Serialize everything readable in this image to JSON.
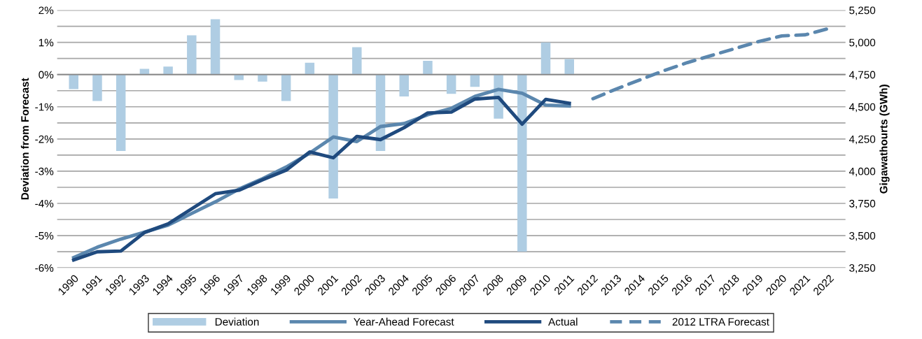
{
  "chart_data": {
    "type": "bar",
    "ylabel": "Deviation from Forecast",
    "y2label": "Gigawathourts (GWh)",
    "categories": [
      "1990",
      "1991",
      "1992",
      "1993",
      "1994",
      "1995",
      "1996",
      "1997",
      "1998",
      "1999",
      "2000",
      "2001",
      "2002",
      "2003",
      "2004",
      "2005",
      "2006",
      "2007",
      "2008",
      "2009",
      "2010",
      "2011",
      "2012",
      "2013",
      "2014",
      "2015",
      "2016",
      "2017",
      "2018",
      "2019",
      "2020",
      "2021",
      "2022"
    ],
    "series": [
      {
        "name": "Deviation",
        "color": "#afcde3",
        "values": [
          -0.45,
          -0.82,
          -2.37,
          0.18,
          0.25,
          1.22,
          1.72,
          -0.17,
          -0.22,
          -0.82,
          0.37,
          -3.85,
          0.85,
          -2.37,
          -0.68,
          0.43,
          -0.6,
          -0.38,
          -1.37,
          -5.5,
          1.0,
          0.48,
          null,
          null,
          null,
          null,
          null,
          null,
          null,
          null,
          null,
          null,
          null
        ]
      },
      {
        "name": "Year-Ahead Forecast",
        "type": "line",
        "axis": "y2",
        "color": "#5b87ae",
        "line_style": "solid",
        "values": [
          3330,
          3410,
          3473,
          3527,
          3581,
          3672,
          3762,
          3861,
          3942,
          4032,
          4140,
          4266,
          4230,
          4347,
          4370,
          4438,
          4488,
          4581,
          4635,
          4605,
          4513,
          4506,
          null,
          null,
          null,
          null,
          null,
          null,
          null,
          null,
          null,
          null,
          null
        ]
      },
      {
        "name": "Actual",
        "type": "line",
        "axis": "y2",
        "color": "#1f4a7e",
        "line_style": "solid",
        "values": [
          3311,
          3374,
          3380,
          3524,
          3591,
          3708,
          3825,
          3852,
          3933,
          4008,
          4149,
          4104,
          4270,
          4245,
          4338,
          4452,
          4459,
          4560,
          4573,
          4365,
          4558,
          4527,
          null,
          null,
          null,
          null,
          null,
          null,
          null,
          null,
          null,
          null,
          null
        ]
      },
      {
        "name": "2012 LTRA Forecast",
        "type": "line",
        "axis": "y2",
        "color": "#5b87ae",
        "line_style": "dashed",
        "values": [
          null,
          null,
          null,
          null,
          null,
          null,
          null,
          null,
          null,
          null,
          null,
          null,
          null,
          null,
          null,
          null,
          null,
          null,
          null,
          null,
          null,
          null,
          4563,
          4639,
          4710,
          4780,
          4843,
          4897,
          4951,
          5005,
          5050,
          5059,
          5108
        ]
      }
    ],
    "ylim": [
      -6,
      2
    ],
    "yticks": [
      {
        "value": -6,
        "label": "-6%"
      },
      {
        "value": -5.5,
        "label": null
      },
      {
        "value": -5,
        "label": "-5%"
      },
      {
        "value": -4.5,
        "label": null
      },
      {
        "value": -4,
        "label": "-4%"
      },
      {
        "value": -3.5,
        "label": null
      },
      {
        "value": -3,
        "label": "-3%"
      },
      {
        "value": -2.5,
        "label": null
      },
      {
        "value": -2,
        "label": "-2%"
      },
      {
        "value": -1.5,
        "label": null
      },
      {
        "value": -1,
        "label": "-1%"
      },
      {
        "value": -0.5,
        "label": null
      },
      {
        "value": 0,
        "label": "0%"
      },
      {
        "value": 0.5,
        "label": null
      },
      {
        "value": 1,
        "label": "1%"
      },
      {
        "value": 1.5,
        "label": null
      },
      {
        "value": 2,
        "label": "2%"
      }
    ],
    "y2lim": [
      3250,
      5250
    ],
    "y2ticks": [
      {
        "value": 3250,
        "label": "3,250"
      },
      {
        "value": 3500,
        "label": "3,500"
      },
      {
        "value": 3750,
        "label": "3,750"
      },
      {
        "value": 4000,
        "label": "4,000"
      },
      {
        "value": 4250,
        "label": "4,250"
      },
      {
        "value": 4500,
        "label": "4,500"
      },
      {
        "value": 4750,
        "label": "4,750"
      },
      {
        "value": 5000,
        "label": "5,000"
      },
      {
        "value": 5250,
        "label": "5,250"
      }
    ],
    "grid": "y",
    "legend": "bottom"
  }
}
